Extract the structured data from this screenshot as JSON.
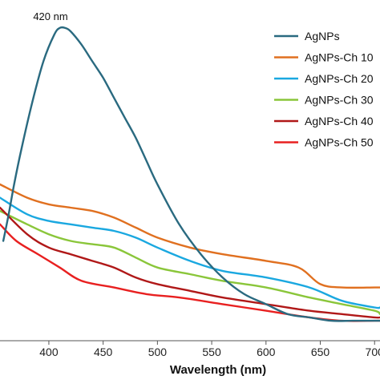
{
  "chart_data": {
    "type": "line",
    "title": "",
    "xlabel": "Wavelength (nm)",
    "ylabel": "",
    "xlim": [
      355,
      705
    ],
    "ylim": [
      0,
      1.0
    ],
    "x_ticks": [
      400,
      450,
      500,
      550,
      600,
      650,
      700
    ],
    "legend_position": "top-right",
    "annotation": {
      "text": "420 nm",
      "x": 420,
      "y": 0.93
    },
    "series": [
      {
        "name": "AgNPs",
        "color": "#2a6a80",
        "x": [
          358,
          363,
          368,
          375,
          385,
          395,
          405,
          410,
          415,
          420,
          430,
          440,
          450,
          460,
          470,
          480,
          490,
          500,
          520,
          540,
          560,
          580,
          600,
          620,
          640,
          660,
          680,
          700,
          705
        ],
        "y": [
          0.3,
          0.38,
          0.47,
          0.58,
          0.72,
          0.84,
          0.92,
          0.94,
          0.94,
          0.93,
          0.89,
          0.84,
          0.79,
          0.73,
          0.67,
          0.61,
          0.54,
          0.47,
          0.35,
          0.26,
          0.19,
          0.14,
          0.11,
          0.08,
          0.07,
          0.06,
          0.06,
          0.06,
          0.06
        ]
      },
      {
        "name": "AgNPs-Ch 10",
        "color": "#e07020",
        "x": [
          355,
          380,
          400,
          420,
          440,
          460,
          480,
          500,
          530,
          560,
          600,
          630,
          650,
          670,
          700,
          705
        ],
        "y": [
          0.47,
          0.43,
          0.41,
          0.4,
          0.39,
          0.37,
          0.34,
          0.31,
          0.28,
          0.26,
          0.24,
          0.22,
          0.17,
          0.16,
          0.16,
          0.16
        ]
      },
      {
        "name": "AgNPs-Ch 20",
        "color": "#1aa8e0",
        "x": [
          355,
          380,
          400,
          420,
          440,
          460,
          480,
          500,
          530,
          560,
          600,
          640,
          670,
          700,
          705
        ],
        "y": [
          0.43,
          0.38,
          0.36,
          0.35,
          0.34,
          0.33,
          0.31,
          0.28,
          0.24,
          0.21,
          0.19,
          0.16,
          0.12,
          0.1,
          0.1
        ]
      },
      {
        "name": "AgNPs-Ch 30",
        "color": "#8ac63a",
        "x": [
          355,
          380,
          400,
          420,
          440,
          460,
          480,
          500,
          530,
          560,
          600,
          640,
          670,
          700,
          705
        ],
        "y": [
          0.39,
          0.35,
          0.32,
          0.3,
          0.29,
          0.28,
          0.25,
          0.22,
          0.2,
          0.18,
          0.16,
          0.13,
          0.11,
          0.09,
          0.08
        ]
      },
      {
        "name": "AgNPs-Ch 40",
        "color": "#b01818",
        "x": [
          355,
          380,
          400,
          420,
          440,
          460,
          480,
          500,
          530,
          560,
          600,
          640,
          670,
          700,
          705
        ],
        "y": [
          0.4,
          0.32,
          0.28,
          0.26,
          0.24,
          0.22,
          0.19,
          0.17,
          0.15,
          0.13,
          0.11,
          0.09,
          0.08,
          0.07,
          0.07
        ]
      },
      {
        "name": "AgNPs-Ch 50",
        "color": "#e82020",
        "x": [
          355,
          370,
          390,
          410,
          430,
          460,
          490,
          520,
          560,
          600,
          640,
          670,
          700,
          705
        ],
        "y": [
          0.35,
          0.3,
          0.26,
          0.22,
          0.18,
          0.16,
          0.14,
          0.13,
          0.11,
          0.09,
          0.07,
          0.06,
          0.06,
          0.06
        ]
      }
    ]
  }
}
